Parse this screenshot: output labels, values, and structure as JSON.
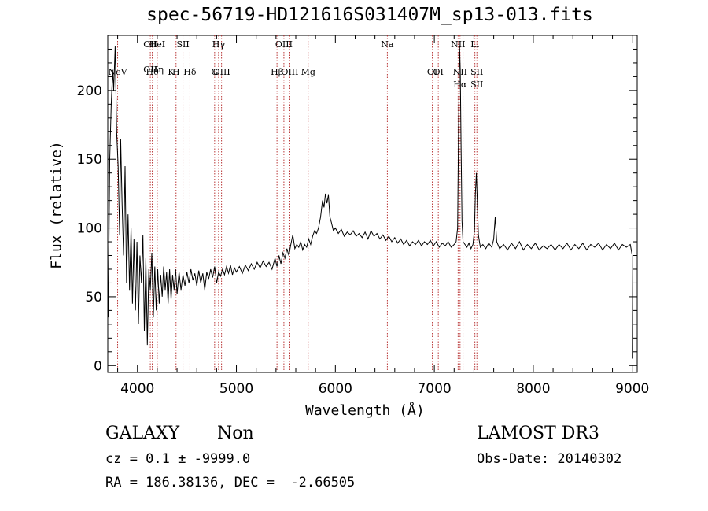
{
  "chart_data": {
    "type": "line",
    "title": "spec-56719-HD121616S031407M_sp13-013.fits",
    "xlabel": "Wavelength (Å)",
    "ylabel": "Flux (relative)",
    "xlim": [
      3700,
      9050
    ],
    "ylim": [
      -5,
      240
    ],
    "xticks": [
      4000,
      5000,
      6000,
      7000,
      8000,
      9000
    ],
    "xtick_labels": [
      "4000",
      "5000",
      "6000",
      "7000",
      "8000",
      "9000"
    ],
    "yticks": [
      0,
      50,
      100,
      150,
      200
    ],
    "ytick_labels": [
      "0",
      "50",
      "100",
      "150",
      "200"
    ],
    "series": [
      {
        "name": "flux",
        "points": [
          [
            3705,
            35
          ],
          [
            3720,
            150
          ],
          [
            3735,
            190
          ],
          [
            3750,
            215
          ],
          [
            3760,
            200
          ],
          [
            3775,
            232
          ],
          [
            3790,
            170
          ],
          [
            3805,
            145
          ],
          [
            3820,
            95
          ],
          [
            3830,
            165
          ],
          [
            3845,
            118
          ],
          [
            3860,
            80
          ],
          [
            3875,
            145
          ],
          [
            3890,
            60
          ],
          [
            3905,
            110
          ],
          [
            3920,
            55
          ],
          [
            3935,
            100
          ],
          [
            3950,
            45
          ],
          [
            3965,
            92
          ],
          [
            3980,
            40
          ],
          [
            3995,
            90
          ],
          [
            4010,
            30
          ],
          [
            4025,
            80
          ],
          [
            4040,
            60
          ],
          [
            4055,
            95
          ],
          [
            4070,
            25
          ],
          [
            4085,
            78
          ],
          [
            4100,
            15
          ],
          [
            4115,
            70
          ],
          [
            4130,
            55
          ],
          [
            4145,
            82
          ],
          [
            4160,
            35
          ],
          [
            4175,
            72
          ],
          [
            4190,
            40
          ],
          [
            4205,
            70
          ],
          [
            4220,
            45
          ],
          [
            4235,
            66
          ],
          [
            4250,
            50
          ],
          [
            4265,
            72
          ],
          [
            4280,
            55
          ],
          [
            4295,
            68
          ],
          [
            4310,
            45
          ],
          [
            4325,
            70
          ],
          [
            4340,
            48
          ],
          [
            4355,
            66
          ],
          [
            4370,
            55
          ],
          [
            4385,
            70
          ],
          [
            4400,
            52
          ],
          [
            4420,
            68
          ],
          [
            4440,
            55
          ],
          [
            4460,
            66
          ],
          [
            4480,
            58
          ],
          [
            4500,
            68
          ],
          [
            4520,
            60
          ],
          [
            4540,
            70
          ],
          [
            4560,
            62
          ],
          [
            4580,
            67
          ],
          [
            4600,
            58
          ],
          [
            4620,
            69
          ],
          [
            4640,
            60
          ],
          [
            4660,
            67
          ],
          [
            4680,
            55
          ],
          [
            4700,
            68
          ],
          [
            4720,
            63
          ],
          [
            4740,
            70
          ],
          [
            4760,
            64
          ],
          [
            4780,
            72
          ],
          [
            4800,
            60
          ],
          [
            4820,
            68
          ],
          [
            4840,
            65
          ],
          [
            4860,
            70
          ],
          [
            4880,
            66
          ],
          [
            4900,
            72
          ],
          [
            4920,
            67
          ],
          [
            4940,
            73
          ],
          [
            4960,
            66
          ],
          [
            4980,
            71
          ],
          [
            5000,
            68
          ],
          [
            5030,
            72
          ],
          [
            5060,
            67
          ],
          [
            5090,
            73
          ],
          [
            5120,
            69
          ],
          [
            5150,
            74
          ],
          [
            5180,
            70
          ],
          [
            5210,
            75
          ],
          [
            5240,
            71
          ],
          [
            5270,
            76
          ],
          [
            5300,
            72
          ],
          [
            5330,
            75
          ],
          [
            5360,
            70
          ],
          [
            5390,
            78
          ],
          [
            5410,
            72
          ],
          [
            5430,
            80
          ],
          [
            5450,
            74
          ],
          [
            5470,
            82
          ],
          [
            5490,
            78
          ],
          [
            5510,
            85
          ],
          [
            5530,
            80
          ],
          [
            5550,
            88
          ],
          [
            5570,
            95
          ],
          [
            5590,
            85
          ],
          [
            5610,
            88
          ],
          [
            5630,
            86
          ],
          [
            5650,
            90
          ],
          [
            5670,
            84
          ],
          [
            5690,
            88
          ],
          [
            5710,
            86
          ],
          [
            5730,
            92
          ],
          [
            5750,
            88
          ],
          [
            5770,
            94
          ],
          [
            5790,
            98
          ],
          [
            5810,
            96
          ],
          [
            5830,
            100
          ],
          [
            5850,
            108
          ],
          [
            5870,
            120
          ],
          [
            5885,
            115
          ],
          [
            5900,
            125
          ],
          [
            5915,
            118
          ],
          [
            5930,
            124
          ],
          [
            5945,
            108
          ],
          [
            5960,
            104
          ],
          [
            5980,
            98
          ],
          [
            6000,
            100
          ],
          [
            6030,
            96
          ],
          [
            6060,
            99
          ],
          [
            6090,
            94
          ],
          [
            6120,
            97
          ],
          [
            6150,
            95
          ],
          [
            6180,
            98
          ],
          [
            6210,
            94
          ],
          [
            6240,
            96
          ],
          [
            6270,
            93
          ],
          [
            6300,
            97
          ],
          [
            6330,
            92
          ],
          [
            6360,
            98
          ],
          [
            6390,
            94
          ],
          [
            6420,
            96
          ],
          [
            6450,
            92
          ],
          [
            6480,
            95
          ],
          [
            6510,
            91
          ],
          [
            6540,
            94
          ],
          [
            6570,
            90
          ],
          [
            6600,
            93
          ],
          [
            6630,
            89
          ],
          [
            6660,
            92
          ],
          [
            6690,
            88
          ],
          [
            6720,
            91
          ],
          [
            6750,
            87
          ],
          [
            6780,
            90
          ],
          [
            6810,
            88
          ],
          [
            6840,
            91
          ],
          [
            6870,
            87
          ],
          [
            6900,
            90
          ],
          [
            6930,
            88
          ],
          [
            6960,
            91
          ],
          [
            6990,
            87
          ],
          [
            7020,
            90
          ],
          [
            7050,
            86
          ],
          [
            7080,
            89
          ],
          [
            7110,
            87
          ],
          [
            7140,
            90
          ],
          [
            7170,
            86
          ],
          [
            7200,
            88
          ],
          [
            7220,
            90
          ],
          [
            7235,
            100
          ],
          [
            7245,
            170
          ],
          [
            7255,
            232
          ],
          [
            7262,
            215
          ],
          [
            7270,
            160
          ],
          [
            7280,
            105
          ],
          [
            7290,
            90
          ],
          [
            7310,
            88
          ],
          [
            7330,
            86
          ],
          [
            7350,
            89
          ],
          [
            7370,
            85
          ],
          [
            7390,
            88
          ],
          [
            7405,
            98
          ],
          [
            7415,
            125
          ],
          [
            7425,
            140
          ],
          [
            7435,
            118
          ],
          [
            7445,
            95
          ],
          [
            7465,
            86
          ],
          [
            7490,
            88
          ],
          [
            7520,
            85
          ],
          [
            7550,
            89
          ],
          [
            7580,
            86
          ],
          [
            7600,
            92
          ],
          [
            7615,
            108
          ],
          [
            7630,
            90
          ],
          [
            7660,
            85
          ],
          [
            7700,
            88
          ],
          [
            7740,
            84
          ],
          [
            7780,
            89
          ],
          [
            7820,
            85
          ],
          [
            7860,
            90
          ],
          [
            7900,
            84
          ],
          [
            7940,
            88
          ],
          [
            7980,
            85
          ],
          [
            8020,
            89
          ],
          [
            8060,
            84
          ],
          [
            8100,
            87
          ],
          [
            8140,
            85
          ],
          [
            8180,
            88
          ],
          [
            8220,
            84
          ],
          [
            8260,
            88
          ],
          [
            8300,
            85
          ],
          [
            8340,
            89
          ],
          [
            8380,
            84
          ],
          [
            8420,
            88
          ],
          [
            8460,
            85
          ],
          [
            8500,
            89
          ],
          [
            8540,
            84
          ],
          [
            8580,
            88
          ],
          [
            8620,
            86
          ],
          [
            8660,
            89
          ],
          [
            8700,
            84
          ],
          [
            8740,
            88
          ],
          [
            8780,
            85
          ],
          [
            8820,
            89
          ],
          [
            8860,
            84
          ],
          [
            8900,
            88
          ],
          [
            8940,
            86
          ],
          [
            8980,
            88
          ],
          [
            9000,
            80
          ],
          [
            9005,
            5
          ]
        ]
      }
    ],
    "lines": [
      {
        "wavelength": 3800,
        "labels": [
          "NeV"
        ],
        "level": 3
      },
      {
        "wavelength": 4130,
        "labels": [
          "OII",
          "OII"
        ],
        "level": 0
      },
      {
        "wavelength": 4150,
        "labels": [
          "Hθ"
        ],
        "level": 3
      },
      {
        "wavelength": 4200,
        "labels": [
          "HeI",
          "Hη"
        ],
        "level": 0
      },
      {
        "wavelength": 4340,
        "labels": [
          "K"
        ],
        "level": 3
      },
      {
        "wavelength": 4390,
        "labels": [
          "H"
        ],
        "level": 2
      },
      {
        "wavelength": 4460,
        "labels": [
          "SII"
        ],
        "level": 0
      },
      {
        "wavelength": 4530,
        "labels": [
          "Hδ"
        ],
        "level": 3
      },
      {
        "wavelength": 4780,
        "labels": [
          "G"
        ],
        "level": 2
      },
      {
        "wavelength": 4820,
        "labels": [
          "Hγ"
        ],
        "level": 0
      },
      {
        "wavelength": 4850,
        "labels": [
          "OIII"
        ],
        "level": 3
      },
      {
        "wavelength": 5410,
        "labels": [
          "Hβ"
        ],
        "level": 2
      },
      {
        "wavelength": 5480,
        "labels": [
          "OIII"
        ],
        "level": 0
      },
      {
        "wavelength": 5540,
        "labels": [
          "OIII"
        ],
        "level": 3
      },
      {
        "wavelength": 5725,
        "labels": [
          "Mg"
        ],
        "level": 2
      },
      {
        "wavelength": 6525,
        "labels": [
          "Na"
        ],
        "level": 0
      },
      {
        "wavelength": 6980,
        "labels": [
          "OI"
        ],
        "level": 3
      },
      {
        "wavelength": 7040,
        "labels": [
          "OI"
        ],
        "level": 2
      },
      {
        "wavelength": 7240,
        "labels": [
          "NII"
        ],
        "level": 0
      },
      {
        "wavelength": 7260,
        "labels": [
          "NII",
          "Hα"
        ],
        "level": 2
      },
      {
        "wavelength": 7290,
        "labels": [],
        "level": 0
      },
      {
        "wavelength": 7410,
        "labels": [
          "Li"
        ],
        "level": 0
      },
      {
        "wavelength": 7430,
        "labels": [
          "SII",
          "SII"
        ],
        "level": 2
      }
    ]
  },
  "info": {
    "object_class": "GALAXY",
    "subclass": "Non",
    "survey": "LAMOST DR3",
    "cz_line": "cz = 0.1 ± -9999.0",
    "obs_date": "Obs-Date: 20140302",
    "coords": "RA = 186.38136, DEC =  -2.66505"
  }
}
